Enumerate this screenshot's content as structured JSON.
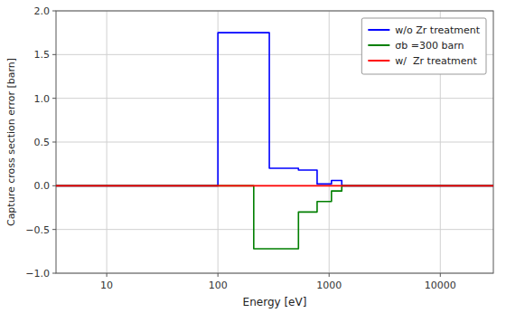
{
  "chart_data": {
    "type": "line",
    "xlabel": "Energy [eV]",
    "ylabel": "Capture cross section error [barn]",
    "log": "x",
    "xlim": [
      3.5,
      30000
    ],
    "ylim": [
      -1,
      2
    ],
    "xticks": [
      10,
      100,
      1000,
      10000
    ],
    "yticks": [
      {
        "value": -1,
        "label": "−1.0"
      },
      {
        "value": -0.5,
        "label": "−0.5"
      },
      {
        "value": 0,
        "label": "0.0"
      },
      {
        "value": 0.5,
        "label": "0.5"
      },
      {
        "value": 1,
        "label": "1.0"
      },
      {
        "value": 1.5,
        "label": "1.5"
      },
      {
        "value": 2,
        "label": "2.0"
      }
    ],
    "grid": true,
    "legend": "upper right",
    "series": [
      {
        "name": "w/o Zr treatment",
        "color": "#0000FF",
        "x": [
          3.5,
          100,
          100,
          290,
          290,
          530,
          530,
          780,
          780,
          1050,
          1050,
          1300,
          1300,
          30000
        ],
        "values": [
          0.0,
          0.0,
          1.75,
          1.75,
          0.2,
          0.2,
          0.18,
          0.18,
          0.02,
          0.02,
          0.06,
          0.06,
          0.0,
          0.0
        ]
      },
      {
        "name": "σb =300 barn",
        "color": "#007F00",
        "x": [
          3.5,
          210,
          210,
          530,
          530,
          780,
          780,
          1050,
          1050,
          1300,
          1300,
          30000
        ],
        "values": [
          0.0,
          0.0,
          -0.72,
          -0.72,
          -0.3,
          -0.3,
          -0.18,
          -0.18,
          -0.06,
          -0.06,
          0.0,
          0.0
        ]
      },
      {
        "name": "w/  Zr treatment",
        "color": "#FF0000",
        "x": [
          3.5,
          30000
        ],
        "values": [
          0.0,
          0.0
        ]
      }
    ]
  }
}
